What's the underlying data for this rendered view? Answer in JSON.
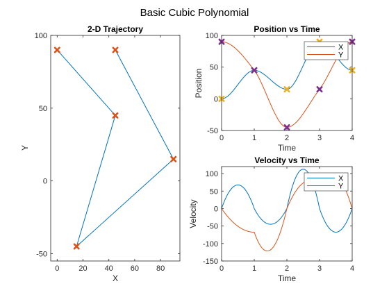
{
  "figure_title": "Basic Cubic Polynomial",
  "colors": {
    "x": "#0072BD",
    "y": "#D95319",
    "waypoint": "#D95319",
    "waypoint_x": "#7E2F8E",
    "waypoint_y": "#EDB120"
  },
  "chart_data": [
    {
      "id": "trajectory",
      "type": "line",
      "title": "2-D Trajectory",
      "xlabel": "X",
      "ylabel": "Y",
      "xlim": [
        -5,
        95
      ],
      "ylim": [
        -55,
        100
      ],
      "xticks": [
        0,
        20,
        40,
        60,
        80
      ],
      "yticks": [
        -50,
        0,
        50,
        100
      ],
      "waypoints": [
        {
          "x": 0,
          "y": 90
        },
        {
          "x": 45,
          "y": 45
        },
        {
          "x": 15,
          "y": -45
        },
        {
          "x": 90,
          "y": 15
        },
        {
          "x": 45,
          "y": 90
        }
      ]
    },
    {
      "id": "position",
      "type": "line",
      "title": "Position vs Time",
      "xlabel": "Time",
      "ylabel": "Position",
      "xlim": [
        0,
        4
      ],
      "ylim": [
        -50,
        100
      ],
      "xticks": [
        0,
        1,
        2,
        3,
        4
      ],
      "yticks": [
        -50,
        0,
        50,
        100
      ],
      "legend": "top-right",
      "time": [
        0,
        1,
        2,
        3,
        4
      ],
      "series": [
        {
          "name": "X",
          "values": [
            0,
            45,
            15,
            90,
            45
          ]
        },
        {
          "name": "Y",
          "values": [
            90,
            45,
            -45,
            15,
            90
          ]
        }
      ]
    },
    {
      "id": "velocity",
      "type": "line",
      "title": "Velocity vs Time",
      "xlabel": "Time",
      "ylabel": "Velocity",
      "xlim": [
        0,
        4
      ],
      "ylim": [
        -150,
        120
      ],
      "xticks": [
        0,
        1,
        2,
        3,
        4
      ],
      "yticks": [
        -150,
        -100,
        -50,
        0,
        50,
        100
      ],
      "legend": "top-right",
      "series": [
        {
          "name": "X",
          "peaks": [
            67,
            -45,
            112,
            -67
          ]
        },
        {
          "name": "Y",
          "peaks": [
            -67,
            -135,
            90,
            67
          ]
        }
      ]
    }
  ]
}
